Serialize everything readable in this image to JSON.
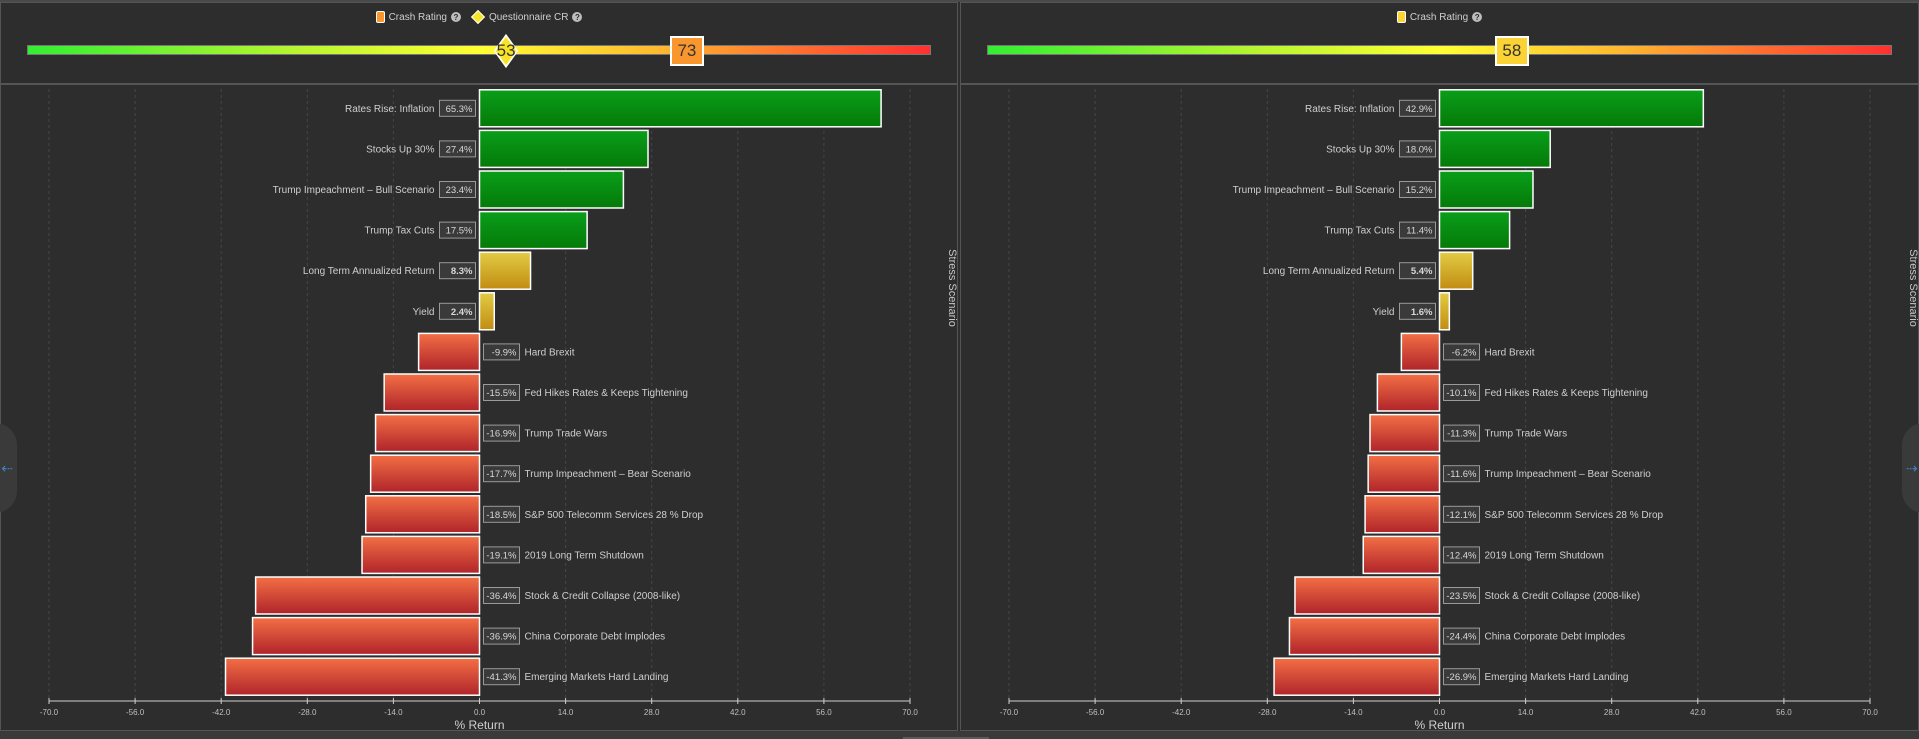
{
  "colors": {
    "positive_bar": "#0a9e1a",
    "positive_bar_dark": "#057a08",
    "income_bar": "#e2cc44",
    "income_bar_dark": "#c18c12",
    "negative_bar": "#f36f45",
    "negative_bar_dark": "#b0242a",
    "crash_rating_left": "#f9962e",
    "questionnaire_cr": "#f8e425",
    "crash_rating_right": "#fbd334"
  },
  "panels": [
    {
      "legend": [
        {
          "label": "Crash Rating",
          "swatch": "square",
          "color": "#f9962e",
          "help": "?"
        },
        {
          "label": "Questionnaire CR",
          "swatch": "diamond",
          "color": "#f8e425",
          "help": "?"
        }
      ],
      "gauge": {
        "min": 0,
        "max": 100,
        "markers": [
          {
            "name": "questionnaire-cr",
            "value": 53,
            "shape": "diamond",
            "color": "#f8e425"
          },
          {
            "name": "crash-rating",
            "value": 73,
            "shape": "square",
            "color": "#f9962e"
          }
        ]
      }
    },
    {
      "legend": [
        {
          "label": "Crash Rating",
          "swatch": "square",
          "color": "#fbd334",
          "help": "?"
        }
      ],
      "gauge": {
        "min": 0,
        "max": 100,
        "markers": [
          {
            "name": "crash-rating",
            "value": 58,
            "shape": "square",
            "color": "#fbd334"
          }
        ]
      }
    }
  ],
  "chart_data": [
    {
      "type": "bar",
      "orientation": "horizontal",
      "title": "",
      "xlabel": "% Return",
      "ylabel": "Stress Scenario",
      "xlim": [
        -70,
        70
      ],
      "xticks": [
        "-70.0",
        "-56.0",
        "-42.0",
        "-28.0",
        "-14.0",
        "0.0",
        "14.0",
        "28.0",
        "42.0",
        "56.0",
        "70.0"
      ],
      "grid": true,
      "categories": [
        "Rates Rise: Inflation",
        "Stocks Up 30%",
        "Trump Impeachment – Bull Scenario",
        "Trump Tax Cuts",
        "Long Term Annualized Return",
        "Yield",
        "Hard Brexit",
        "Fed Hikes Rates & Keeps Tightening",
        "Trump Trade Wars",
        "Trump Impeachment – Bear Scenario",
        "S&P 500 Telecomm Services 28 % Drop",
        "2019 Long Term Shutdown",
        "Stock & Credit Collapse (2008-like)",
        "China Corporate Debt Implodes",
        "Emerging Markets Hard Landing"
      ],
      "values": [
        65.3,
        27.4,
        23.4,
        17.5,
        8.3,
        2.4,
        -9.9,
        -15.5,
        -16.9,
        -17.7,
        -18.5,
        -19.1,
        -36.4,
        -36.9,
        -41.3
      ],
      "value_labels": [
        "65.3%",
        "27.4%",
        "23.4%",
        "17.5%",
        "8.3%",
        "2.4%",
        "-9.9%",
        "-15.5%",
        "-16.9%",
        "-17.7%",
        "-18.5%",
        "-19.1%",
        "-36.4%",
        "-36.9%",
        "-41.3%"
      ],
      "kinds": [
        "pos",
        "pos",
        "pos",
        "pos",
        "income",
        "income",
        "neg",
        "neg",
        "neg",
        "neg",
        "neg",
        "neg",
        "neg",
        "neg",
        "neg"
      ]
    },
    {
      "type": "bar",
      "orientation": "horizontal",
      "title": "",
      "xlabel": "% Return",
      "ylabel": "Stress Scenario",
      "xlim": [
        -70,
        70
      ],
      "xticks": [
        "-70.0",
        "-56.0",
        "-42.0",
        "-28.0",
        "-14.0",
        "0.0",
        "14.0",
        "28.0",
        "42.0",
        "56.0",
        "70.0"
      ],
      "grid": true,
      "categories": [
        "Rates Rise: Inflation",
        "Stocks Up 30%",
        "Trump Impeachment – Bull Scenario",
        "Trump Tax Cuts",
        "Long Term Annualized Return",
        "Yield",
        "Hard Brexit",
        "Fed Hikes Rates & Keeps Tightening",
        "Trump Trade Wars",
        "Trump Impeachment – Bear Scenario",
        "S&P 500 Telecomm Services 28 % Drop",
        "2019 Long Term Shutdown",
        "Stock & Credit Collapse (2008-like)",
        "China Corporate Debt Implodes",
        "Emerging Markets Hard Landing"
      ],
      "values": [
        42.9,
        18.0,
        15.2,
        11.4,
        5.4,
        1.6,
        -6.2,
        -10.1,
        -11.3,
        -11.6,
        -12.1,
        -12.4,
        -23.5,
        -24.4,
        -26.9
      ],
      "value_labels": [
        "42.9%",
        "18.0%",
        "15.2%",
        "11.4%",
        "5.4%",
        "1.6%",
        "-6.2%",
        "-10.1%",
        "-11.3%",
        "-11.6%",
        "-12.1%",
        "-12.4%",
        "-23.5%",
        "-24.4%",
        "-26.9%"
      ],
      "kinds": [
        "pos",
        "pos",
        "pos",
        "pos",
        "income",
        "income",
        "neg",
        "neg",
        "neg",
        "neg",
        "neg",
        "neg",
        "neg",
        "neg",
        "neg"
      ]
    }
  ],
  "nav": {
    "prev_icon": "arrow-left-icon",
    "next_icon": "arrow-right-icon",
    "prev_glyph": "⇠",
    "next_glyph": "⇢"
  }
}
